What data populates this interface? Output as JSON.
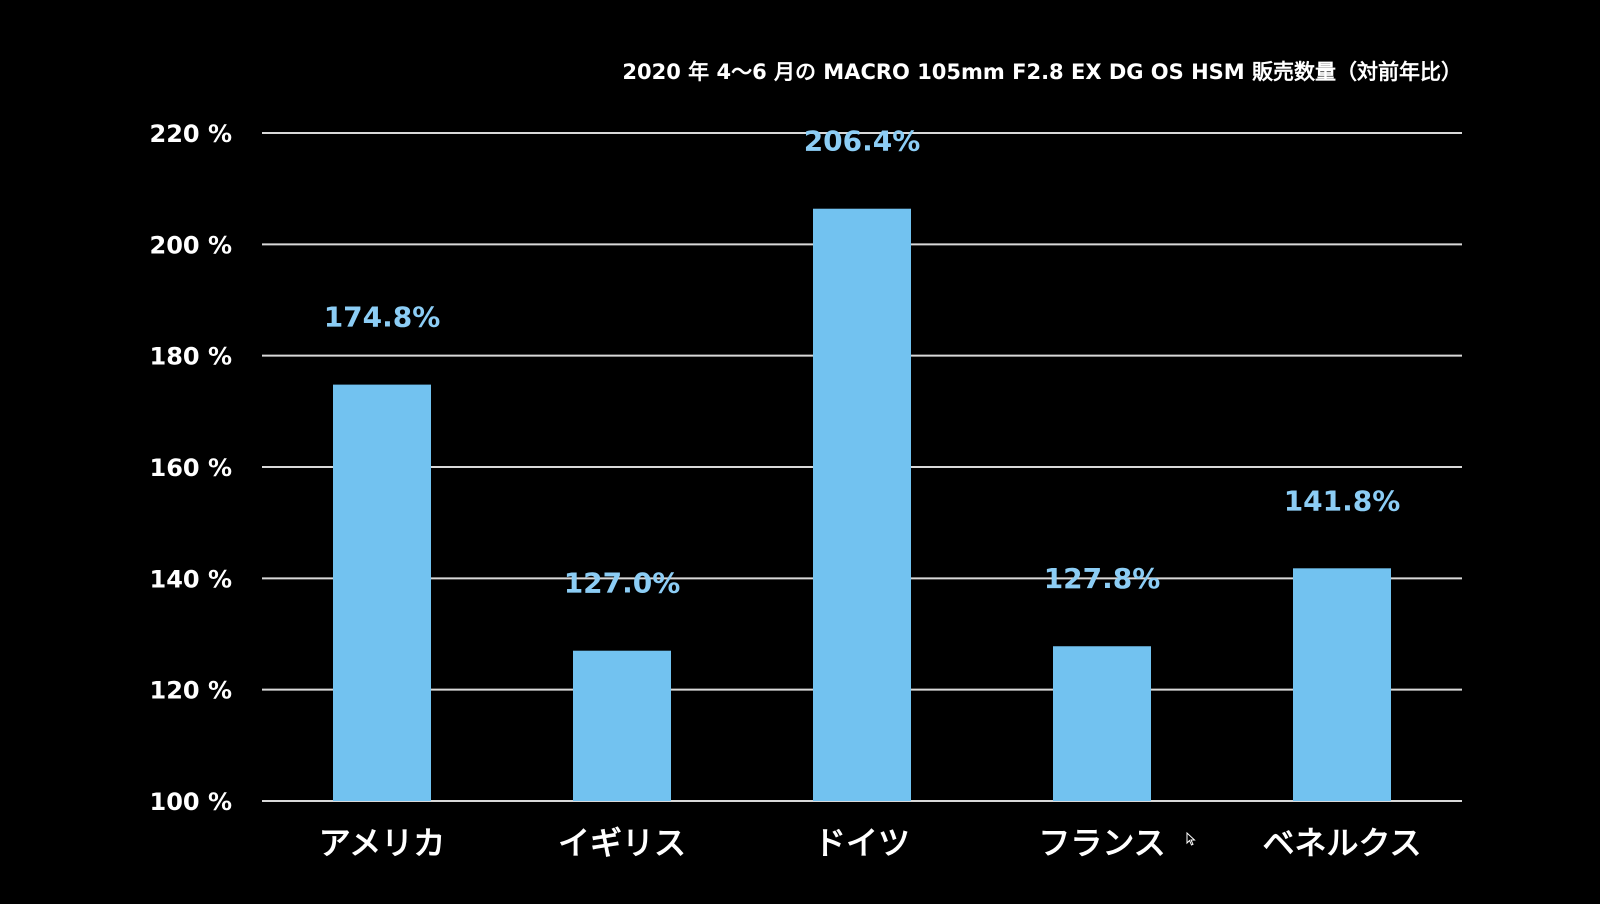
{
  "chart_data": {
    "type": "bar",
    "title": "2020 年 4〜6 月の MACRO 105mm F2.8 EX DG OS HSM  販売数量（対前年比）",
    "categories": [
      "アメリカ",
      "イギリス",
      "ドイツ",
      "フランス",
      "ベネルクス"
    ],
    "values": [
      174.8,
      127.0,
      206.4,
      127.8,
      141.8
    ],
    "data_labels": [
      "174.8%",
      "127.0%",
      "206.4%",
      "127.8%",
      "141.8%"
    ],
    "ylim": [
      100,
      220
    ],
    "yticks": [
      100,
      120,
      140,
      160,
      180,
      200,
      220
    ],
    "ytick_labels": [
      "100 %",
      "120 %",
      "140 %",
      "160 %",
      "180 %",
      "200 %",
      "220 %"
    ],
    "xlabel": "",
    "ylabel": "",
    "grid": true,
    "legend": false,
    "colors": {
      "background": "#000000",
      "bar": "#72c2f0",
      "data_label": "#8ccdf5",
      "grid": "#d9d9d9",
      "text": "#ffffff"
    }
  },
  "icons": {
    "cursor": "mouse-pointer-icon"
  }
}
